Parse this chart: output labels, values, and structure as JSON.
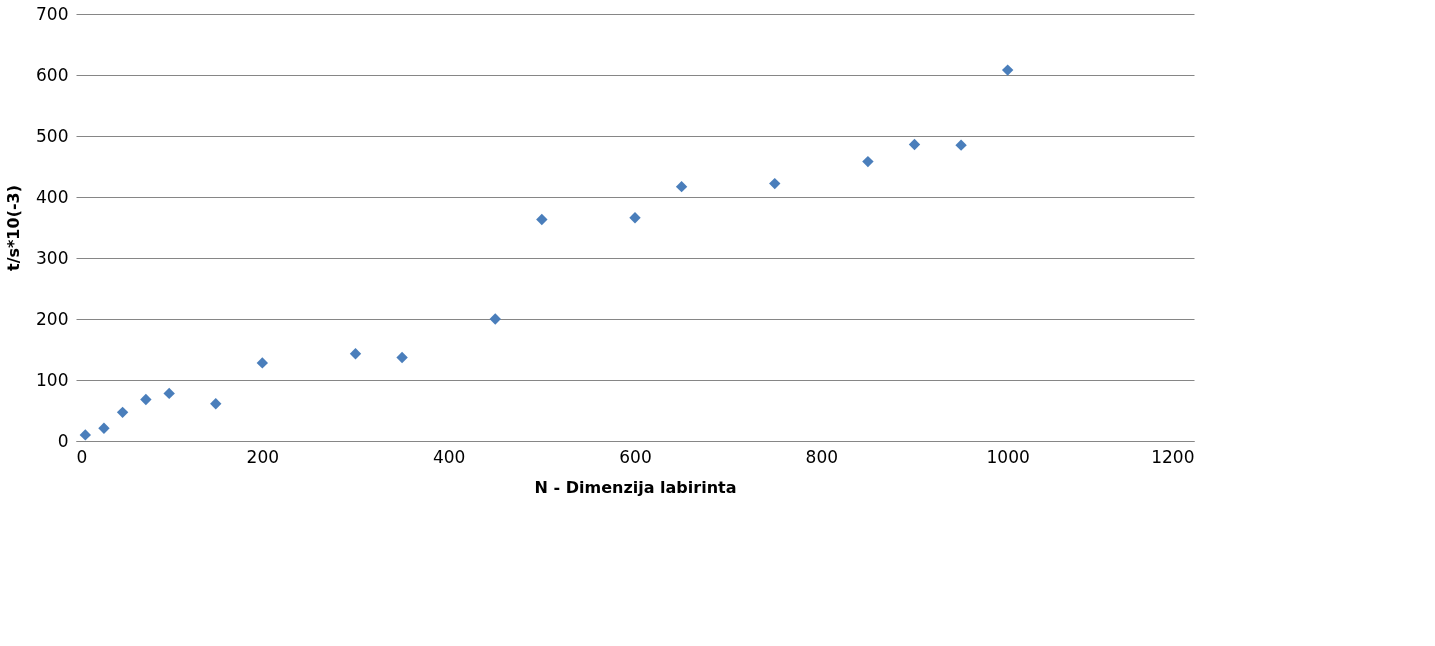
{
  "chart_data": {
    "type": "scatter",
    "xlabel": "N - Dimenzija labirinta",
    "ylabel": "t/s*10(-3)",
    "x": [
      10,
      30,
      50,
      75,
      100,
      150,
      200,
      300,
      350,
      450,
      500,
      600,
      650,
      750,
      850,
      900,
      950,
      1000
    ],
    "series": [
      {
        "color": "#4a7ebb",
        "values": [
          10,
          21,
          47,
          68,
          78,
          61,
          128,
          143,
          137,
          200,
          363,
          366,
          417,
          422,
          458,
          486,
          485,
          608
        ]
      }
    ],
    "xlim": [
      0,
      1200
    ],
    "xticks": [
      0,
      200,
      400,
      600,
      800,
      1000,
      1200
    ],
    "ylim": [
      0,
      700
    ],
    "yticks": [
      0,
      100,
      200,
      300,
      400,
      500,
      600,
      700
    ],
    "grid": "y",
    "marker": "diamond",
    "legend": false
  }
}
